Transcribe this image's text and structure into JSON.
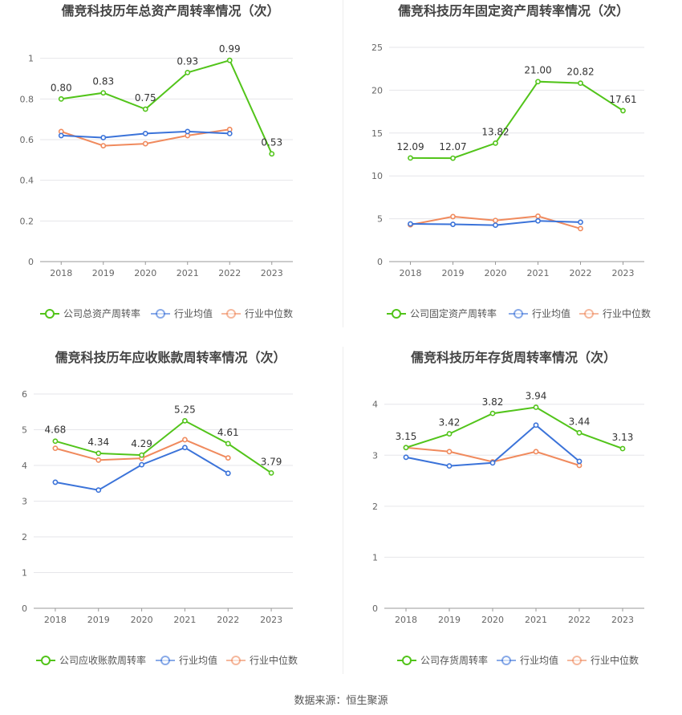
{
  "source": "数据来源：恒生聚源",
  "colors": {
    "company": "#52c41a",
    "avg": "#3b73d9",
    "median": "#f08a5d",
    "grid": "#e6e6ea",
    "axis": "#999999",
    "tick": "#666666",
    "title": "#444444"
  },
  "legend": [
    "行业均值",
    "行业中位数"
  ],
  "chart_data": [
    {
      "type": "line",
      "title": "儒竞科技历年总资产周转率情况（次）",
      "categories": [
        "2018",
        "2019",
        "2020",
        "2021",
        "2022",
        "2023"
      ],
      "y_ticks": [
        "0",
        "0.2",
        "0.4",
        "0.6",
        "0.8",
        "1"
      ],
      "ylim": [
        0,
        1.05
      ],
      "grid": true,
      "legend_position": "bottom",
      "series": [
        {
          "name": "公司总资产周转率",
          "key": "company",
          "values": [
            0.8,
            0.83,
            0.75,
            0.93,
            0.99,
            0.53
          ],
          "labels": [
            "0.80",
            "0.83",
            "0.75",
            "0.93",
            "0.99",
            "0.53"
          ]
        },
        {
          "name": "行业均值",
          "key": "avg",
          "values": [
            0.62,
            0.61,
            0.63,
            0.64,
            0.63,
            null
          ]
        },
        {
          "name": "行业中位数",
          "key": "median",
          "values": [
            0.64,
            0.57,
            0.58,
            0.62,
            0.65,
            null
          ]
        }
      ]
    },
    {
      "type": "line",
      "title": "儒竞科技历年固定资产周转率情况（次）",
      "categories": [
        "2018",
        "2019",
        "2020",
        "2021",
        "2022",
        "2023"
      ],
      "y_ticks": [
        "0",
        "5",
        "10",
        "15",
        "20",
        "25"
      ],
      "ylim": [
        0,
        25
      ],
      "grid": true,
      "legend_position": "bottom",
      "series": [
        {
          "name": "公司固定资产周转率",
          "key": "company",
          "values": [
            12.09,
            12.07,
            13.82,
            21.0,
            20.82,
            17.61
          ],
          "labels": [
            "12.09",
            "12.07",
            "13.82",
            "21.00",
            "20.82",
            "17.61"
          ]
        },
        {
          "name": "行业均值",
          "key": "avg",
          "values": [
            4.4,
            4.35,
            4.25,
            4.75,
            4.6,
            null
          ]
        },
        {
          "name": "行业中位数",
          "key": "median",
          "values": [
            4.3,
            5.25,
            4.8,
            5.3,
            3.85,
            null
          ]
        }
      ]
    },
    {
      "type": "line",
      "title": "儒竞科技历年应收账款周转率情况（次）",
      "categories": [
        "2018",
        "2019",
        "2020",
        "2021",
        "2022",
        "2023"
      ],
      "y_ticks": [
        "0",
        "1",
        "2",
        "3",
        "4",
        "5",
        "6"
      ],
      "ylim": [
        0,
        6
      ],
      "grid": true,
      "legend_position": "bottom",
      "series": [
        {
          "name": "公司应收账款周转率",
          "key": "company",
          "values": [
            4.68,
            4.34,
            4.29,
            5.25,
            4.61,
            3.79
          ],
          "labels": [
            "4.68",
            "4.34",
            "4.29",
            "5.25",
            "4.61",
            "3.79"
          ]
        },
        {
          "name": "行业均值",
          "key": "avg",
          "values": [
            3.53,
            3.31,
            4.02,
            4.5,
            3.78,
            null
          ]
        },
        {
          "name": "行业中位数",
          "key": "median",
          "values": [
            4.48,
            4.15,
            4.2,
            4.72,
            4.21,
            null
          ]
        }
      ]
    },
    {
      "type": "line",
      "title": "儒竞科技历年存货周转率情况（次）",
      "categories": [
        "2018",
        "2019",
        "2020",
        "2021",
        "2022",
        "2023"
      ],
      "y_ticks": [
        "0",
        "1",
        "2",
        "3",
        "4"
      ],
      "ylim": [
        0,
        4.2
      ],
      "grid": true,
      "legend_position": "bottom",
      "series": [
        {
          "name": "公司存货周转率",
          "key": "company",
          "values": [
            3.15,
            3.42,
            3.82,
            3.94,
            3.44,
            3.13
          ],
          "labels": [
            "3.15",
            "3.42",
            "3.82",
            "3.94",
            "3.44",
            "3.13"
          ]
        },
        {
          "name": "行业均值",
          "key": "avg",
          "values": [
            2.96,
            2.79,
            2.85,
            3.59,
            2.88,
            null
          ]
        },
        {
          "name": "行业中位数",
          "key": "median",
          "values": [
            3.15,
            3.07,
            2.87,
            3.07,
            2.8,
            null
          ]
        }
      ]
    }
  ]
}
